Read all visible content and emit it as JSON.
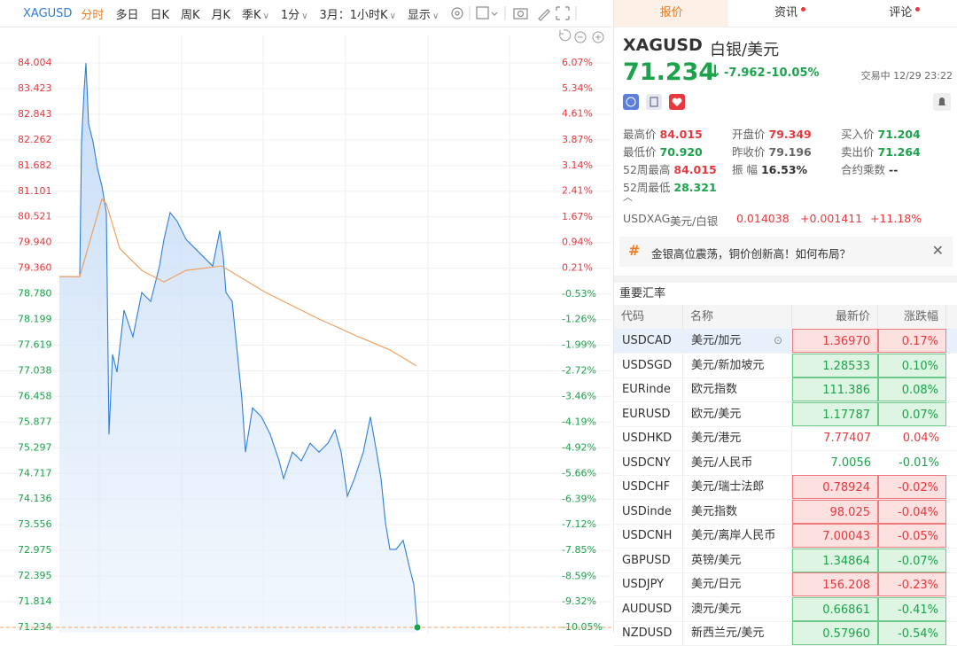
{
  "toolbar": {
    "symbol": "XAGUSD",
    "tabs": [
      {
        "label": "分时",
        "active": true
      },
      {
        "label": "多日"
      },
      {
        "label": "日K"
      },
      {
        "label": "周K"
      },
      {
        "label": "月K"
      },
      {
        "label": "季K",
        "menu": true
      },
      {
        "label": "1分",
        "menu": true
      },
      {
        "label": "3月：1小时K",
        "menu": true
      },
      {
        "label": "显示",
        "menu": true
      }
    ]
  },
  "chart_data": {
    "type": "line",
    "ylim": [
      71.234,
      84.004
    ],
    "yticks": [
      {
        "value": 84.004,
        "label": "84.004"
      },
      {
        "value": 83.423,
        "label": "83.423"
      },
      {
        "value": 82.843,
        "label": "82.843"
      },
      {
        "value": 82.262,
        "label": "82.262"
      },
      {
        "value": 81.682,
        "label": "81.682"
      },
      {
        "value": 81.101,
        "label": "81.101"
      },
      {
        "value": 80.521,
        "label": "80.521"
      },
      {
        "value": 79.94,
        "label": "79.940"
      },
      {
        "value": 79.36,
        "label": "79.360"
      },
      {
        "value": 78.78,
        "label": "78.780"
      },
      {
        "value": 78.199,
        "label": "78.199"
      },
      {
        "value": 77.619,
        "label": "77.619"
      },
      {
        "value": 77.038,
        "label": "77.038"
      },
      {
        "value": 76.458,
        "label": "76.458"
      },
      {
        "value": 75.877,
        "label": "75.877"
      },
      {
        "value": 75.297,
        "label": "75.297"
      },
      {
        "value": 74.717,
        "label": "74.717"
      },
      {
        "value": 74.136,
        "label": "74.136"
      },
      {
        "value": 73.556,
        "label": "73.556"
      },
      {
        "value": 72.975,
        "label": "72.975"
      },
      {
        "value": 72.395,
        "label": "72.395"
      },
      {
        "value": 71.814,
        "label": "71.814"
      },
      {
        "value": 71.234,
        "label": "71.234"
      }
    ],
    "y2lim": [
      -10.05,
      6.07
    ],
    "y2ticks": [
      {
        "value": 6.07,
        "label": "6.07%"
      },
      {
        "value": 5.34,
        "label": "5.34%"
      },
      {
        "value": 4.61,
        "label": "4.61%"
      },
      {
        "value": 3.87,
        "label": "3.87%"
      },
      {
        "value": 3.14,
        "label": "3.14%"
      },
      {
        "value": 2.41,
        "label": "2.41%"
      },
      {
        "value": 1.67,
        "label": "1.67%"
      },
      {
        "value": 0.94,
        "label": "0.94%"
      },
      {
        "value": 0.21,
        "label": "0.21%"
      },
      {
        "value": -0.53,
        "label": "-0.53%"
      },
      {
        "value": -1.26,
        "label": "-1.26%"
      },
      {
        "value": -1.99,
        "label": "-1.99%"
      },
      {
        "value": -2.72,
        "label": "-2.72%"
      },
      {
        "value": -3.46,
        "label": "-3.46%"
      },
      {
        "value": -4.19,
        "label": "-4.19%"
      },
      {
        "value": -4.92,
        "label": "-4.92%"
      },
      {
        "value": -5.66,
        "label": "-5.66%"
      },
      {
        "value": -6.39,
        "label": "-6.39%"
      },
      {
        "value": -7.12,
        "label": "-7.12%"
      },
      {
        "value": -7.85,
        "label": "-7.85%"
      },
      {
        "value": -8.59,
        "label": "-8.59%"
      },
      {
        "value": -9.32,
        "label": "-9.32%"
      },
      {
        "value": -10.05,
        "label": "-10.05%"
      }
    ],
    "xlim": [
      0,
      558
    ],
    "series": [
      {
        "name": "价格",
        "color": "#2f7fd8",
        "area": true,
        "x": [
          0,
          23,
          25,
          28,
          30,
          33,
          38,
          43,
          48,
          53,
          56,
          60,
          65,
          73,
          83,
          93,
          103,
          113,
          118,
          125,
          133,
          143,
          153,
          163,
          173,
          181,
          185,
          188,
          195,
          201,
          206,
          210,
          218,
          228,
          238,
          248,
          253,
          263,
          273,
          283,
          293,
          303,
          311,
          318,
          325,
          333,
          343,
          351,
          358,
          363,
          368,
          373,
          380,
          388,
          395,
          400,
          404
        ],
        "values": [
          79.17,
          79.17,
          82.22,
          83.42,
          84.0,
          82.62,
          82.22,
          81.62,
          81.22,
          80.62,
          75.6,
          77.41,
          77.01,
          78.41,
          77.81,
          78.81,
          78.61,
          79.41,
          80.01,
          80.62,
          80.42,
          80.01,
          79.81,
          79.61,
          79.41,
          80.21,
          79.61,
          78.81,
          78.61,
          77.41,
          76.4,
          75.2,
          76.2,
          76.0,
          75.6,
          75.0,
          74.6,
          75.2,
          75.0,
          75.4,
          75.2,
          75.4,
          75.7,
          75.2,
          74.2,
          74.6,
          75.2,
          76.0,
          75.2,
          74.6,
          73.6,
          73.0,
          73.0,
          73.2,
          72.6,
          72.2,
          71.234
        ]
      },
      {
        "name": "均价",
        "color": "#f0a060",
        "x": [
          0,
          23,
          48,
          53,
          68,
          93,
          118,
          143,
          183,
          208,
          233,
          263,
          293,
          333,
          373,
          403
        ],
        "values": [
          79.17,
          79.17,
          80.92,
          80.82,
          79.81,
          79.31,
          79.05,
          79.31,
          79.41,
          79.11,
          78.81,
          78.51,
          78.21,
          77.85,
          77.51,
          77.15
        ]
      }
    ]
  },
  "panel": {
    "tabs": [
      {
        "label": "报价",
        "active": true
      },
      {
        "label": "资讯",
        "dot": true
      },
      {
        "label": "评论",
        "dot": true
      }
    ],
    "symbol": "XAGUSD",
    "name": "白银/美元",
    "price": "71.234",
    "change": "-7.962",
    "change_pct": "-10.05%",
    "status": "交易中 12/29 23:22",
    "stats": [
      {
        "label": "最高价",
        "value": "84.015",
        "color": "red"
      },
      {
        "label": "开盘价",
        "value": "79.349",
        "color": "red"
      },
      {
        "label": "买入价",
        "value": "71.204",
        "color": "green"
      },
      {
        "label": "最低价",
        "value": "70.920",
        "color": "green"
      },
      {
        "label": "昨收价",
        "value": "79.196",
        "color": "gray"
      },
      {
        "label": "卖出价",
        "value": "71.264",
        "color": "green"
      },
      {
        "label": "52周最高",
        "value": "84.015",
        "color": "red"
      },
      {
        "label": "振 幅",
        "value": "16.53%",
        "color": "dark"
      },
      {
        "label": "合约乘数",
        "value": "--",
        "color": "dark"
      },
      {
        "label": "52周最低",
        "value": "28.321",
        "color": "green"
      }
    ],
    "related": {
      "code": "USDXAG",
      "name": "美元/白银",
      "price": "0.014038",
      "change": "+0.001411",
      "pct": "+11.18%"
    },
    "banner": "金银高位震荡，铜价创新高！如何布局？",
    "section": "重要汇率",
    "table": {
      "headers": [
        "代码",
        "名称",
        "最新价",
        "涨跌幅"
      ],
      "rows": [
        {
          "code": "USDCAD",
          "name": "美元/加元",
          "price": "1.36970",
          "pct": "0.17%",
          "color": "red",
          "flash": true,
          "selected": true
        },
        {
          "code": "USDSGD",
          "name": "美元/新加坡元",
          "price": "1.28533",
          "pct": "0.10%",
          "color": "green",
          "flash": true
        },
        {
          "code": "EURinde",
          "name": "欧元指数",
          "price": "111.386",
          "pct": "0.08%",
          "color": "green",
          "flash": true
        },
        {
          "code": "EURUSD",
          "name": "欧元/美元",
          "price": "1.17787",
          "pct": "0.07%",
          "color": "green",
          "flash": true
        },
        {
          "code": "USDHKD",
          "name": "美元/港元",
          "price": "7.77407",
          "pct": "0.04%",
          "color": "red",
          "flash": false
        },
        {
          "code": "USDCNY",
          "name": "美元/人民币",
          "price": "7.0056",
          "pct": "-0.01%",
          "color": "green",
          "flash": false
        },
        {
          "code": "USDCHF",
          "name": "美元/瑞士法郎",
          "price": "0.78924",
          "pct": "-0.02%",
          "color": "red",
          "flash": true
        },
        {
          "code": "USDinde",
          "name": "美元指数",
          "price": "98.025",
          "pct": "-0.04%",
          "color": "red",
          "flash": true
        },
        {
          "code": "USDCNH",
          "name": "美元/离岸人民币",
          "price": "7.00043",
          "pct": "-0.05%",
          "color": "red",
          "flash": true
        },
        {
          "code": "GBPUSD",
          "name": "英镑/美元",
          "price": "1.34864",
          "pct": "-0.07%",
          "color": "green",
          "flash": true
        },
        {
          "code": "USDJPY",
          "name": "美元/日元",
          "price": "156.208",
          "pct": "-0.23%",
          "color": "red",
          "flash": true
        },
        {
          "code": "AUDUSD",
          "name": "澳元/美元",
          "price": "0.66861",
          "pct": "-0.41%",
          "color": "green",
          "flash": true
        },
        {
          "code": "NZDUSD",
          "name": "新西兰元/美元",
          "price": "0.57960",
          "pct": "-0.54%",
          "color": "green",
          "flash": true
        }
      ]
    }
  }
}
